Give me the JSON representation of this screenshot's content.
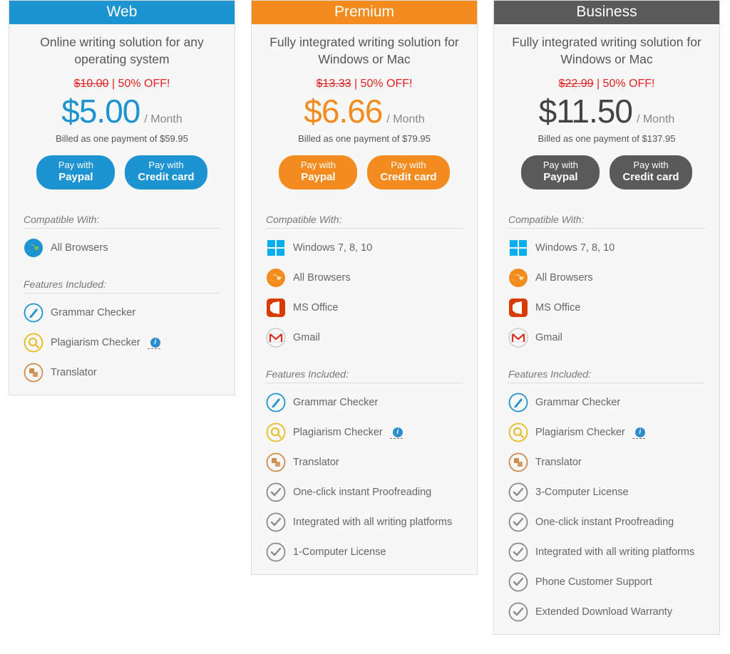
{
  "colors": {
    "web_accent": "#1d94d1",
    "premium_accent": "#f38b1e",
    "business_accent": "#5a5a5a",
    "discount_red": "#e62020",
    "text_muted": "#666666",
    "card_bg": "#f7f7f7",
    "border": "#dcdcdc"
  },
  "labels": {
    "compatible": "Compatible With:",
    "features": "Features Included:",
    "per_month": "/ Month",
    "pay_with": "Pay with",
    "paypal": "Paypal",
    "credit_card": "Credit card"
  },
  "plans": {
    "web": {
      "title": "Web",
      "tagline": "Online writing solution for any operating system",
      "old_price": "$10.00",
      "discount_text": "50% OFF!",
      "price": "$5.00",
      "billed": "Billed as one payment of $59.95",
      "compat": [
        {
          "icon": "globe",
          "label": "All Browsers"
        }
      ],
      "features": [
        {
          "icon": "pen",
          "label": "Grammar Checker"
        },
        {
          "icon": "search",
          "label": "Plagiarism Checker",
          "info": true
        },
        {
          "icon": "translate",
          "label": "Translator"
        }
      ]
    },
    "premium": {
      "title": "Premium",
      "tagline": "Fully integrated writing solution for Windows or Mac",
      "old_price": "$13.33",
      "discount_text": "50% OFF!",
      "price": "$6.66",
      "billed": "Billed as one payment of $79.95",
      "compat": [
        {
          "icon": "windows",
          "label": "Windows 7, 8, 10"
        },
        {
          "icon": "globe-orange",
          "label": "All Browsers"
        },
        {
          "icon": "office",
          "label": "MS Office"
        },
        {
          "icon": "gmail",
          "label": "Gmail"
        }
      ],
      "features": [
        {
          "icon": "pen",
          "label": "Grammar Checker"
        },
        {
          "icon": "search",
          "label": "Plagiarism Checker",
          "info": true
        },
        {
          "icon": "translate",
          "label": "Translator"
        },
        {
          "icon": "check",
          "label": "One-click instant Proofreading"
        },
        {
          "icon": "check",
          "label": "Integrated with all writing platforms"
        },
        {
          "icon": "check",
          "label": "1-Computer License"
        }
      ]
    },
    "business": {
      "title": "Business",
      "tagline": "Fully integrated writing solution for Windows or Mac",
      "old_price": "$22.99",
      "discount_text": "50% OFF!",
      "price": "$11.50",
      "billed": "Billed as one payment of $137.95",
      "compat": [
        {
          "icon": "windows",
          "label": "Windows 7, 8, 10"
        },
        {
          "icon": "globe-orange",
          "label": "All Browsers"
        },
        {
          "icon": "office",
          "label": "MS Office"
        },
        {
          "icon": "gmail",
          "label": "Gmail"
        }
      ],
      "features": [
        {
          "icon": "pen",
          "label": "Grammar Checker"
        },
        {
          "icon": "search",
          "label": "Plagiarism Checker",
          "info": true
        },
        {
          "icon": "translate",
          "label": "Translator"
        },
        {
          "icon": "check",
          "label": "3-Computer License"
        },
        {
          "icon": "check",
          "label": "One-click instant Proofreading"
        },
        {
          "icon": "check",
          "label": "Integrated with all writing platforms"
        },
        {
          "icon": "check",
          "label": "Phone Customer Support"
        },
        {
          "icon": "check",
          "label": "Extended Download Warranty"
        }
      ]
    }
  }
}
